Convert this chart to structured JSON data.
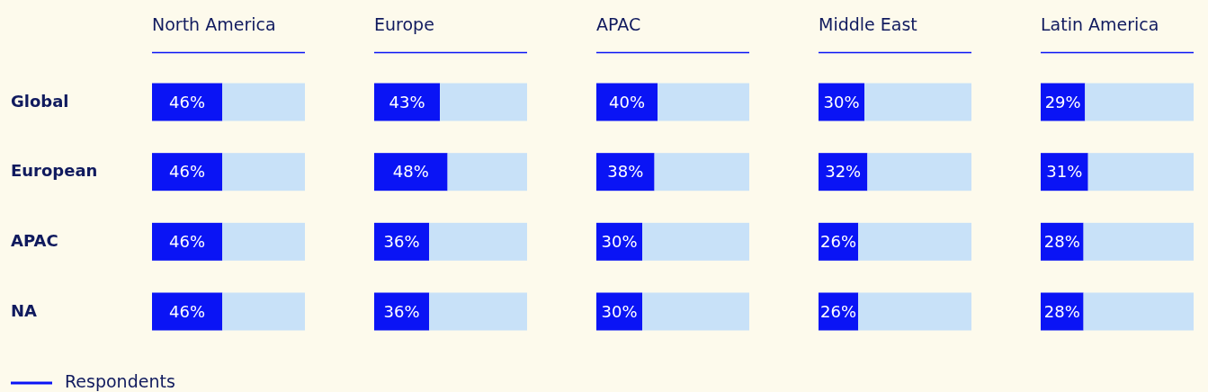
{
  "chart_data": [
    {
      "type": "bar",
      "orientation": "horizontal",
      "stacked": true,
      "title": "North America",
      "categories": [
        "Global",
        "European",
        "APAC",
        "NA"
      ],
      "tick_labels": "y",
      "annotations": [
        "Respondents"
      ],
      "series": [
        {
          "color": "#0a14f5",
          "values": [
            46,
            46,
            46,
            46
          ],
          "value_labels": [
            "46%",
            "46%",
            "46%",
            "46%"
          ]
        },
        {
          "color": "#c8e1f8",
          "values": [
            54,
            54,
            54,
            54
          ]
        }
      ]
    },
    {
      "type": "bar",
      "orientation": "horizontal",
      "stacked": true,
      "title": "Europe",
      "categories": [
        null,
        null,
        null,
        null
      ],
      "tick_labels": false,
      "series": [
        {
          "color": "#0a14f5",
          "values": [
            43,
            48,
            36,
            36
          ],
          "value_labels": [
            "43%",
            "48%",
            "36%",
            "36%"
          ]
        },
        {
          "color": "#c8e1f8",
          "values": [
            57,
            52,
            64,
            64
          ]
        }
      ]
    },
    {
      "type": "bar",
      "orientation": "horizontal",
      "stacked": true,
      "title": "APAC",
      "categories": [
        null,
        null,
        null,
        null
      ],
      "tick_labels": false,
      "series": [
        {
          "color": "#0a14f5",
          "values": [
            40,
            38,
            30,
            30
          ],
          "value_labels": [
            "40%",
            "38%",
            "30%",
            "30%"
          ]
        },
        {
          "color": "#c8e1f8",
          "values": [
            60,
            62,
            70,
            70
          ]
        }
      ]
    },
    {
      "type": "bar",
      "orientation": "horizontal",
      "stacked": true,
      "title": "Middle East",
      "categories": [
        null,
        null,
        null,
        null
      ],
      "tick_labels": false,
      "series": [
        {
          "color": "#0a14f5",
          "values": [
            30,
            32,
            26,
            26
          ],
          "value_labels": [
            "30%",
            "32%",
            "26%",
            "26%"
          ]
        },
        {
          "color": "#c8e1f8",
          "values": [
            70,
            68,
            74,
            74
          ]
        }
      ]
    },
    {
      "type": "bar",
      "orientation": "horizontal",
      "stacked": true,
      "title": "Latin America",
      "categories": [
        null,
        null,
        null,
        null
      ],
      "tick_labels": false,
      "series": [
        {
          "color": "#0a14f5",
          "values": [
            29,
            31,
            28,
            28
          ],
          "value_labels": [
            "29%",
            "31%",
            "28%",
            "28%"
          ]
        },
        {
          "color": "#c8e1f8",
          "values": [
            71,
            69,
            72,
            72
          ]
        }
      ]
    }
  ]
}
